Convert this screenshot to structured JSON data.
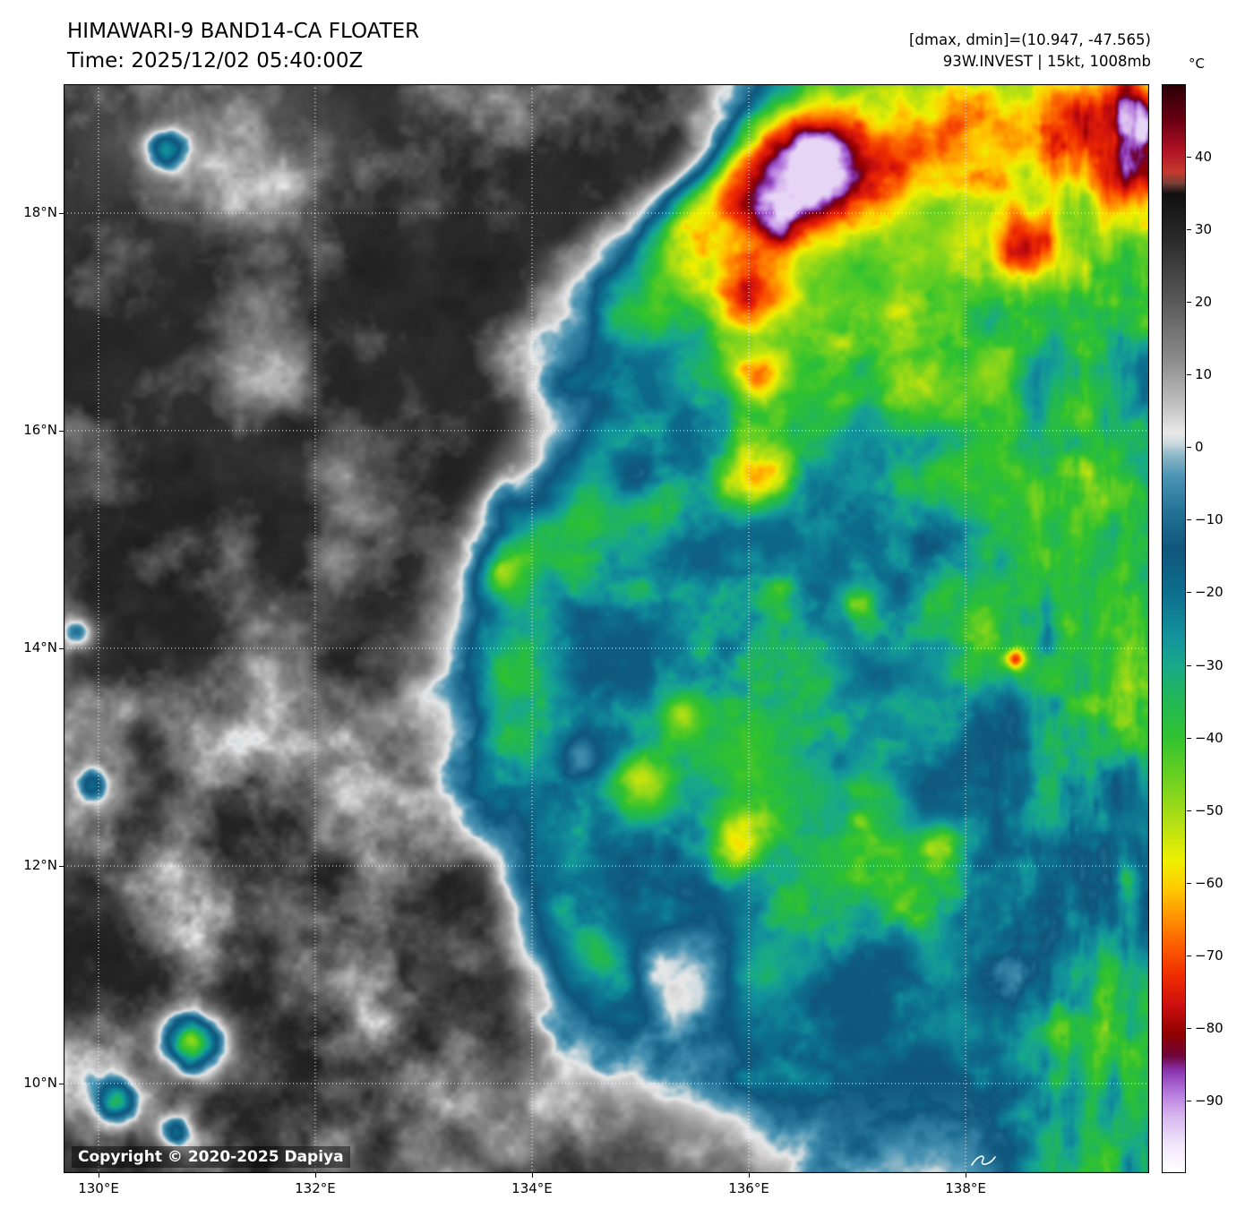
{
  "header": {
    "title": "HIMAWARI-9 BAND14-CA FLOATER",
    "time": "Time: 2025/12/02 05:40:00Z",
    "range_label": "[dmax, dmin]=(10.947, -47.565)",
    "storm_label": "93W.INVEST | 15kt, 1008mb"
  },
  "colorbar": {
    "unit": "°C",
    "ticks": [
      "40",
      "30",
      "20",
      "10",
      "0",
      "−10",
      "−20",
      "−30",
      "−40",
      "−50",
      "−60",
      "−70",
      "−80",
      "−90"
    ],
    "tick_values": [
      40,
      30,
      20,
      10,
      0,
      -10,
      -20,
      -30,
      -40,
      -50,
      -60,
      -70,
      -80,
      -90
    ],
    "value_max": 50,
    "value_min": -100
  },
  "axes": {
    "x_ticks": [
      "130°E",
      "132°E",
      "134°E",
      "136°E",
      "138°E"
    ],
    "y_ticks": [
      "18°N",
      "16°N",
      "14°N",
      "12°N",
      "10°N"
    ]
  },
  "overlay": {
    "copyright": "Copyright © 2020-2025 Dapiya"
  },
  "imagery": {
    "seed": 20251202,
    "colormap_stops": [
      [
        50,
        "#2b0008"
      ],
      [
        45,
        "#6b0011"
      ],
      [
        41,
        "#b01225"
      ],
      [
        38,
        "#c43a2e"
      ],
      [
        36.5,
        "#7a4038"
      ],
      [
        35,
        "#101010"
      ],
      [
        28,
        "#2e2e2e"
      ],
      [
        20,
        "#5a5a5a"
      ],
      [
        12,
        "#8c8c8c"
      ],
      [
        6,
        "#c0c0c0"
      ],
      [
        2,
        "#e8e8e8"
      ],
      [
        0.5,
        "#c9d8de"
      ],
      [
        -1,
        "#8fb8c8"
      ],
      [
        -4,
        "#4a94b4"
      ],
      [
        -9,
        "#227195"
      ],
      [
        -14,
        "#10567c"
      ],
      [
        -20,
        "#0d6e8e"
      ],
      [
        -26,
        "#13929c"
      ],
      [
        -30,
        "#17a98b"
      ],
      [
        -34,
        "#20b55d"
      ],
      [
        -40,
        "#30c230"
      ],
      [
        -46,
        "#70d120"
      ],
      [
        -52,
        "#b6e013"
      ],
      [
        -57,
        "#eef000"
      ],
      [
        -61,
        "#ffc800"
      ],
      [
        -65,
        "#ff9000"
      ],
      [
        -69,
        "#fb5a00"
      ],
      [
        -73,
        "#ee2b00"
      ],
      [
        -77,
        "#cc1010"
      ],
      [
        -81,
        "#8f0000"
      ],
      [
        -84,
        "#6e063c"
      ],
      [
        -86,
        "#8a35b0"
      ],
      [
        -89,
        "#b578dd"
      ],
      [
        -92,
        "#d4b2ec"
      ],
      [
        -96,
        "#efe4fa"
      ],
      [
        -100,
        "#ffffff"
      ]
    ],
    "cold_cores": [
      [
        0.685,
        0.075,
        0.034,
        32
      ],
      [
        0.645,
        0.105,
        0.038,
        20
      ],
      [
        0.74,
        0.085,
        0.048,
        20
      ],
      [
        0.82,
        0.05,
        0.04,
        16
      ],
      [
        0.9,
        0.03,
        0.04,
        18
      ],
      [
        0.965,
        0.04,
        0.045,
        26
      ],
      [
        0.99,
        0.015,
        0.03,
        26
      ],
      [
        0.992,
        0.09,
        0.032,
        30
      ],
      [
        0.885,
        0.145,
        0.023,
        34
      ],
      [
        0.63,
        0.198,
        0.017,
        26
      ],
      [
        0.638,
        0.267,
        0.021,
        38
      ],
      [
        0.632,
        0.357,
        0.021,
        38
      ],
      [
        0.399,
        0.385,
        0.015,
        20
      ],
      [
        0.402,
        0.45,
        0.013,
        22
      ],
      [
        0.564,
        0.577,
        0.017,
        24
      ],
      [
        0.531,
        0.64,
        0.021,
        26
      ],
      [
        0.618,
        0.697,
        0.017,
        28
      ],
      [
        0.655,
        0.47,
        0.015,
        15
      ],
      [
        0.732,
        0.474,
        0.012,
        20
      ],
      [
        0.814,
        0.694,
        0.015,
        20
      ],
      [
        0.875,
        0.527,
        0.007,
        34
      ],
      [
        0.119,
        0.88,
        0.02,
        64
      ],
      [
        0.012,
        0.503,
        0.011,
        36
      ],
      [
        0.024,
        0.642,
        0.01,
        32
      ],
      [
        0.094,
        0.057,
        0.012,
        38
      ],
      [
        0.049,
        0.933,
        0.013,
        40
      ],
      [
        0.103,
        0.96,
        0.011,
        36
      ],
      [
        0.78,
        0.28,
        0.028,
        14
      ],
      [
        0.93,
        0.295,
        0.026,
        12
      ],
      [
        0.69,
        0.317,
        0.022,
        12
      ],
      [
        0.568,
        0.77,
        0.02,
        18
      ],
      [
        0.505,
        0.8,
        0.02,
        16
      ]
    ],
    "warm_holes": [
      [
        0.8,
        0.42,
        0.024,
        22
      ],
      [
        0.525,
        0.36,
        0.017,
        20
      ],
      [
        0.475,
        0.615,
        0.014,
        18
      ],
      [
        0.88,
        0.82,
        0.032,
        22
      ],
      [
        0.93,
        0.72,
        0.018,
        15
      ],
      [
        0.7,
        0.61,
        0.015,
        14
      ]
    ]
  }
}
